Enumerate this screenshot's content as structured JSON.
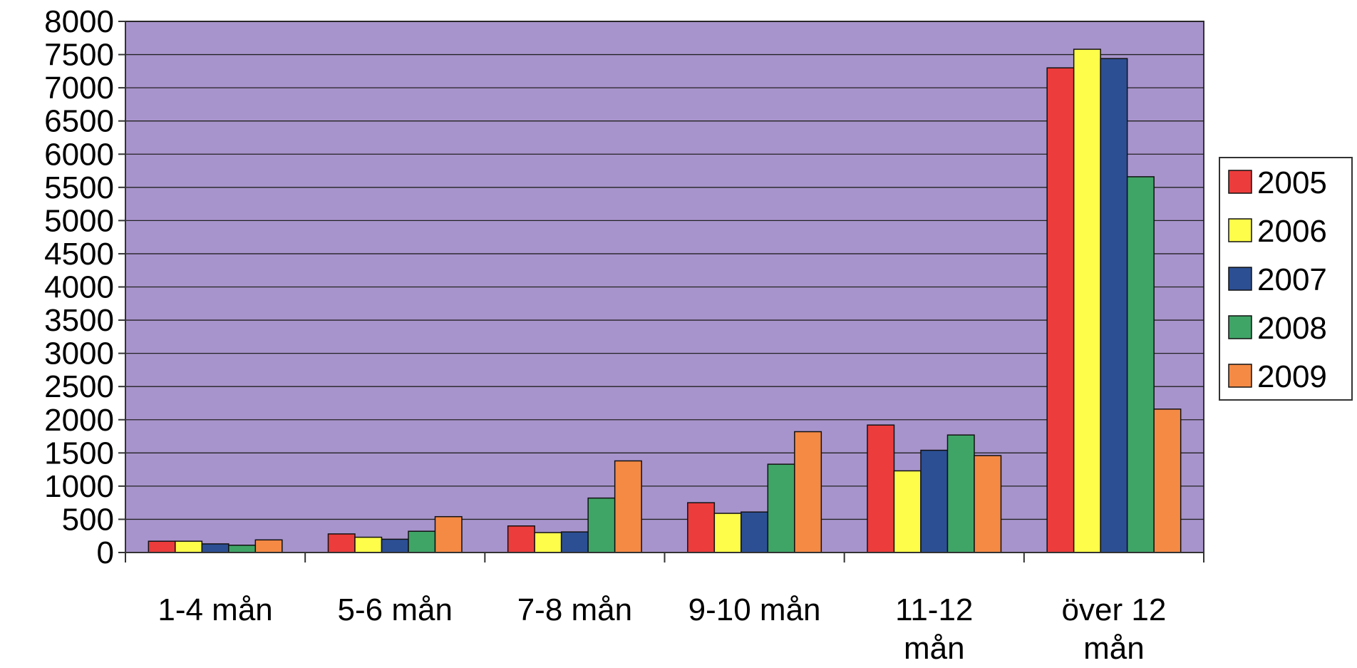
{
  "chart_data": {
    "type": "bar",
    "title": "",
    "xlabel": "",
    "ylabel": "",
    "ylim": [
      0,
      8000
    ],
    "y_ticks": [
      0,
      500,
      1000,
      1500,
      2000,
      2500,
      3000,
      3500,
      4000,
      4500,
      5000,
      5500,
      6000,
      6500,
      7000,
      7500,
      8000
    ],
    "grid": true,
    "legend_position": "right",
    "categories": [
      [
        "1-4 mån"
      ],
      [
        "5-6 mån"
      ],
      [
        "7-8 mån"
      ],
      [
        "9-10 mån"
      ],
      [
        "11-12",
        "mån"
      ],
      [
        "över 12",
        "mån"
      ]
    ],
    "series": [
      {
        "name": "2005",
        "color": "#ec3c3c",
        "values": [
          170,
          280,
          400,
          750,
          1920,
          7300
        ]
      },
      {
        "name": "2006",
        "color": "#fdfd4a",
        "values": [
          170,
          230,
          300,
          590,
          1230,
          7580
        ]
      },
      {
        "name": "2007",
        "color": "#2c4f94",
        "values": [
          130,
          200,
          310,
          610,
          1540,
          7440
        ]
      },
      {
        "name": "2008",
        "color": "#3fa567",
        "values": [
          110,
          320,
          820,
          1330,
          1770,
          5660
        ]
      },
      {
        "name": "2009",
        "color": "#f58a45",
        "values": [
          190,
          540,
          1380,
          1820,
          1460,
          2160
        ]
      }
    ],
    "plot_background": "#a894cc"
  }
}
